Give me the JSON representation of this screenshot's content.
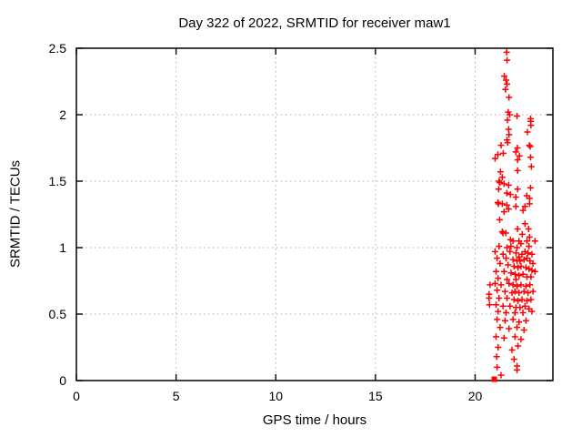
{
  "chart_data": {
    "type": "scatter",
    "title": "Day 322 of 2022, SRMTID for receiver maw1",
    "xlabel": "GPS time / hours",
    "ylabel": "SRMTID / TECUs",
    "xlim": [
      0,
      23.9
    ],
    "ylim": [
      0,
      2.5
    ],
    "xticks": [
      0,
      5,
      10,
      15,
      20
    ],
    "xtick_labels": [
      "0",
      "5",
      "10",
      "15",
      "20"
    ],
    "yticks": [
      0,
      0.5,
      1,
      1.5,
      2,
      2.5
    ],
    "ytick_labels": [
      "0",
      "0.5",
      "1",
      "1.5",
      "2",
      "2.5"
    ],
    "grid": true,
    "legend": false,
    "marker": "plus",
    "marker_color": "#ff0000",
    "grid_color": "#aaaaaa",
    "axis_color": "#000000",
    "series_name": "SRMTID",
    "points": [
      [
        21.58,
        2.47
      ],
      [
        21.6,
        2.41
      ],
      [
        21.46,
        2.29
      ],
      [
        21.55,
        2.26
      ],
      [
        21.6,
        2.23
      ],
      [
        21.52,
        2.19
      ],
      [
        21.7,
        2.13
      ],
      [
        21.66,
        2.02
      ],
      [
        21.73,
        2.0
      ],
      [
        22.1,
        1.99
      ],
      [
        21.62,
        1.96
      ],
      [
        22.78,
        1.97
      ],
      [
        22.79,
        1.95
      ],
      [
        22.8,
        1.92
      ],
      [
        22.62,
        1.87
      ],
      [
        21.68,
        1.89
      ],
      [
        21.7,
        1.85
      ],
      [
        21.6,
        1.81
      ],
      [
        21.63,
        1.79
      ],
      [
        21.3,
        1.77
      ],
      [
        22.72,
        1.77
      ],
      [
        22.76,
        1.76
      ],
      [
        22.12,
        1.75
      ],
      [
        21.14,
        1.7
      ],
      [
        21.41,
        1.71
      ],
      [
        21.0,
        1.67
      ],
      [
        22.04,
        1.72
      ],
      [
        22.22,
        1.69
      ],
      [
        22.13,
        1.66
      ],
      [
        22.78,
        1.68
      ],
      [
        22.82,
        1.61
      ],
      [
        22.13,
        1.58
      ],
      [
        21.27,
        1.57
      ],
      [
        21.36,
        1.53
      ],
      [
        21.2,
        1.5
      ],
      [
        21.24,
        1.49
      ],
      [
        21.45,
        1.48
      ],
      [
        21.68,
        1.47
      ],
      [
        21.18,
        1.44
      ],
      [
        22.13,
        1.44
      ],
      [
        22.78,
        1.45
      ],
      [
        21.59,
        1.41
      ],
      [
        21.77,
        1.4
      ],
      [
        22.59,
        1.39
      ],
      [
        22.04,
        1.38
      ],
      [
        22.73,
        1.37
      ],
      [
        21.14,
        1.34
      ],
      [
        21.17,
        1.33
      ],
      [
        21.36,
        1.33
      ],
      [
        21.59,
        1.32
      ],
      [
        22.04,
        1.31
      ],
      [
        22.5,
        1.31
      ],
      [
        22.73,
        1.33
      ],
      [
        21.68,
        1.29
      ],
      [
        21.45,
        1.27
      ],
      [
        22.4,
        1.28
      ],
      [
        21.23,
        1.21
      ],
      [
        22.5,
        1.18
      ],
      [
        22.13,
        1.14
      ],
      [
        22.68,
        1.14
      ],
      [
        21.36,
        1.12
      ],
      [
        21.4,
        1.11
      ],
      [
        21.54,
        1.11
      ],
      [
        22.36,
        1.1
      ],
      [
        22.73,
        1.08
      ],
      [
        21.77,
        1.06
      ],
      [
        21.9,
        1.05
      ],
      [
        22.2,
        1.05
      ],
      [
        22.6,
        1.05
      ],
      [
        23.0,
        1.05
      ],
      [
        21.2,
        1.01
      ],
      [
        21.6,
        1.0
      ],
      [
        21.8,
        1.01
      ],
      [
        22.1,
        1.0
      ],
      [
        22.7,
        1.01
      ],
      [
        22.3,
        1.03
      ],
      [
        21.0,
        0.97
      ],
      [
        21.4,
        0.95
      ],
      [
        21.75,
        0.97
      ],
      [
        22.05,
        0.96
      ],
      [
        22.2,
        0.93
      ],
      [
        22.35,
        0.95
      ],
      [
        22.5,
        0.97
      ],
      [
        22.65,
        0.96
      ],
      [
        22.85,
        0.95
      ],
      [
        21.1,
        0.92
      ],
      [
        21.55,
        0.92
      ],
      [
        21.9,
        0.91
      ],
      [
        22.1,
        0.9
      ],
      [
        22.25,
        0.9
      ],
      [
        22.45,
        0.91
      ],
      [
        22.6,
        0.92
      ],
      [
        22.75,
        0.9
      ],
      [
        22.9,
        0.88
      ],
      [
        21.25,
        0.88
      ],
      [
        21.65,
        0.87
      ],
      [
        21.95,
        0.86
      ],
      [
        22.15,
        0.85
      ],
      [
        22.3,
        0.86
      ],
      [
        22.55,
        0.85
      ],
      [
        22.7,
        0.84
      ],
      [
        22.85,
        0.83
      ],
      [
        21.05,
        0.82
      ],
      [
        21.45,
        0.82
      ],
      [
        21.8,
        0.81
      ],
      [
        22.0,
        0.8
      ],
      [
        22.2,
        0.79
      ],
      [
        22.4,
        0.8
      ],
      [
        22.6,
        0.78
      ],
      [
        22.8,
        0.78
      ],
      [
        23.0,
        0.82
      ],
      [
        21.15,
        0.77
      ],
      [
        21.6,
        0.76
      ],
      [
        22.05,
        0.76
      ],
      [
        20.75,
        0.72
      ],
      [
        21.0,
        0.73
      ],
      [
        21.3,
        0.72
      ],
      [
        21.7,
        0.73
      ],
      [
        21.9,
        0.72
      ],
      [
        22.1,
        0.71
      ],
      [
        22.3,
        0.72
      ],
      [
        22.55,
        0.71
      ],
      [
        22.75,
        0.72
      ],
      [
        21.1,
        0.68
      ],
      [
        21.5,
        0.67
      ],
      [
        21.85,
        0.66
      ],
      [
        22.0,
        0.67
      ],
      [
        22.2,
        0.66
      ],
      [
        22.45,
        0.67
      ],
      [
        22.65,
        0.66
      ],
      [
        22.9,
        0.67
      ],
      [
        20.7,
        0.65
      ],
      [
        20.7,
        0.62
      ],
      [
        21.2,
        0.62
      ],
      [
        21.6,
        0.62
      ],
      [
        21.95,
        0.61
      ],
      [
        22.15,
        0.6
      ],
      [
        22.35,
        0.61
      ],
      [
        22.6,
        0.6
      ],
      [
        22.8,
        0.61
      ],
      [
        20.72,
        0.57
      ],
      [
        21.05,
        0.57
      ],
      [
        21.4,
        0.56
      ],
      [
        21.75,
        0.56
      ],
      [
        22.05,
        0.55
      ],
      [
        22.25,
        0.55
      ],
      [
        22.5,
        0.56
      ],
      [
        22.7,
        0.54
      ],
      [
        21.15,
        0.52
      ],
      [
        21.55,
        0.51
      ],
      [
        22.0,
        0.51
      ],
      [
        22.4,
        0.51
      ],
      [
        22.85,
        0.52
      ],
      [
        21.1,
        0.46
      ],
      [
        21.5,
        0.45
      ],
      [
        21.9,
        0.46
      ],
      [
        22.2,
        0.44
      ],
      [
        22.55,
        0.45
      ],
      [
        21.25,
        0.4
      ],
      [
        21.7,
        0.39
      ],
      [
        22.1,
        0.4
      ],
      [
        22.45,
        0.38
      ],
      [
        21.05,
        0.33
      ],
      [
        21.45,
        0.32
      ],
      [
        22.0,
        0.33
      ],
      [
        22.3,
        0.31
      ],
      [
        21.15,
        0.25
      ],
      [
        21.85,
        0.23
      ],
      [
        22.15,
        0.26
      ],
      [
        21.08,
        0.18
      ],
      [
        21.95,
        0.16
      ],
      [
        21.1,
        0.1
      ],
      [
        22.1,
        0.11
      ],
      [
        22.1,
        0.08
      ],
      [
        21.3,
        0.04
      ]
    ],
    "square_point": [
      20.96,
      0.01
    ]
  }
}
